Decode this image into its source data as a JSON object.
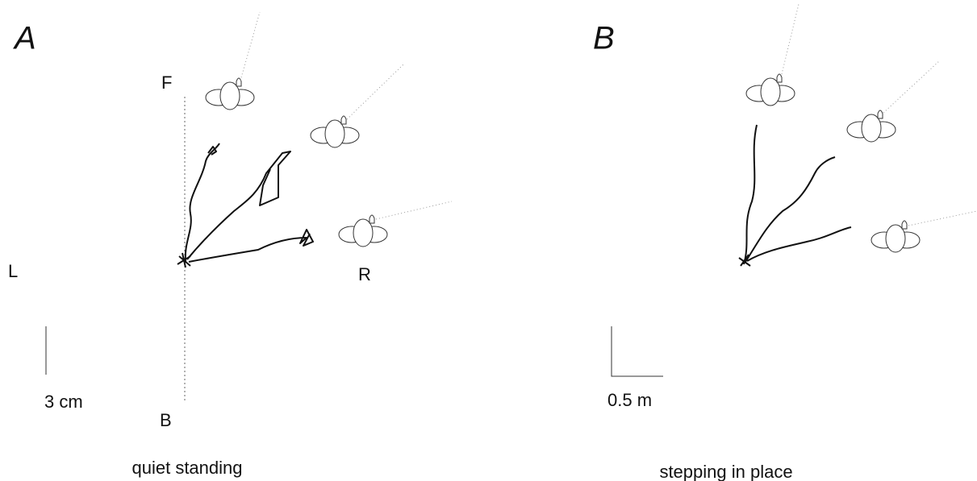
{
  "panels": [
    {
      "label": "A",
      "front": "F",
      "left": "L",
      "right": "R",
      "back": "B",
      "scale_bar": "3 cm",
      "caption": "quiet standing"
    },
    {
      "label": "B",
      "scale_bar": "0.5 m",
      "caption": "stepping in place"
    }
  ]
}
